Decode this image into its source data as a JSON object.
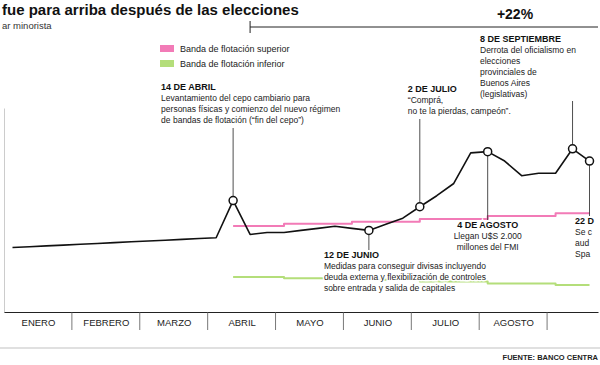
{
  "chart_data": {
    "type": "line",
    "title": "fue para arriba después de las elecciones",
    "subtitle": "ar minorista",
    "change_label": "+22%",
    "source": "FUENTE: BANCO CENTRA",
    "categories": [
      null,
      "ENERO",
      null,
      null,
      null,
      "FEBRERO",
      null,
      null,
      null,
      "MARZO",
      null,
      null,
      null,
      "ABRIL",
      null,
      null,
      null,
      "MAYO",
      null,
      null,
      null,
      "JUNIO",
      null,
      null,
      null,
      "JULIO",
      null,
      null,
      null,
      "AGOSTO",
      null,
      null,
      null,
      null,
      null
    ],
    "ylim": [
      900,
      1400
    ],
    "tick_labels": "x",
    "grid": false,
    "legend": "top-left",
    "series": [
      {
        "color": "#111111",
        "line_style": "solid",
        "values": [
          1058,
          1060,
          1062,
          1064,
          1066,
          1068,
          1070,
          1072,
          1074,
          1076,
          1078,
          1080,
          1082,
          1173,
          1090,
          1095,
          1095,
          1100,
          1105,
          1110,
          1105,
          1100,
          1115,
          1130,
          1158,
          1185,
          1215,
          1290,
          1293,
          1270,
          1234,
          1240,
          1240,
          1300,
          1270
        ]
      },
      {
        "name": "Banda de flotación superior",
        "color": "#f27bb7",
        "line_style": "step",
        "values": [
          null,
          null,
          null,
          null,
          null,
          null,
          null,
          null,
          null,
          null,
          null,
          null,
          null,
          1111,
          1111,
          1111,
          1116,
          1116,
          1116,
          1116,
          1121,
          1121,
          1121,
          1121,
          1128,
          1128,
          1128,
          1128,
          1135,
          1135,
          1135,
          1135,
          1142,
          1142,
          1142
        ]
      },
      {
        "name": "Banda de flotación inferior",
        "color": "#b4de7a",
        "line_style": "step",
        "values": [
          null,
          null,
          null,
          null,
          null,
          null,
          null,
          null,
          null,
          null,
          null,
          null,
          null,
          986,
          986,
          986,
          983,
          983,
          983,
          983,
          979,
          979,
          979,
          979,
          975,
          975,
          975,
          975,
          970,
          970,
          970,
          970,
          966,
          966,
          966
        ]
      }
    ],
    "annotations": [
      {
        "date": "14 DE ABRIL",
        "point": 13,
        "text": [
          "Levantamiento del cepo cambiario para",
          "personas físicas y comienzo del nuevo régimen",
          "de bandas de flotación (“fin del cepo”)"
        ]
      },
      {
        "date": "12 DE JUNIO",
        "point": 21,
        "text": [
          "Medidas para conseguir divisas incluyendo",
          "deuda externa y flexibilización de controles",
          "sobre entrada y salida de capitales"
        ]
      },
      {
        "date": "2 DE JULIO",
        "point": 24,
        "text": [
          "“Comprá,",
          "no te la pierdas, campeón”."
        ]
      },
      {
        "date": "4 DE AGOSTO",
        "point": 28,
        "text": [
          "Llegan U$S 2.000",
          "millones del FMI"
        ]
      },
      {
        "date": "8 DE SEPTIEMBRE",
        "point": 33,
        "text": [
          "Derrota del oficialismo en",
          "elecciones",
          "provinciales de",
          "Buenos Aires",
          "(legislativas)"
        ]
      },
      {
        "date": "22 D",
        "point": 34,
        "text": [
          "Se c",
          "aud",
          "Spa"
        ]
      }
    ]
  }
}
